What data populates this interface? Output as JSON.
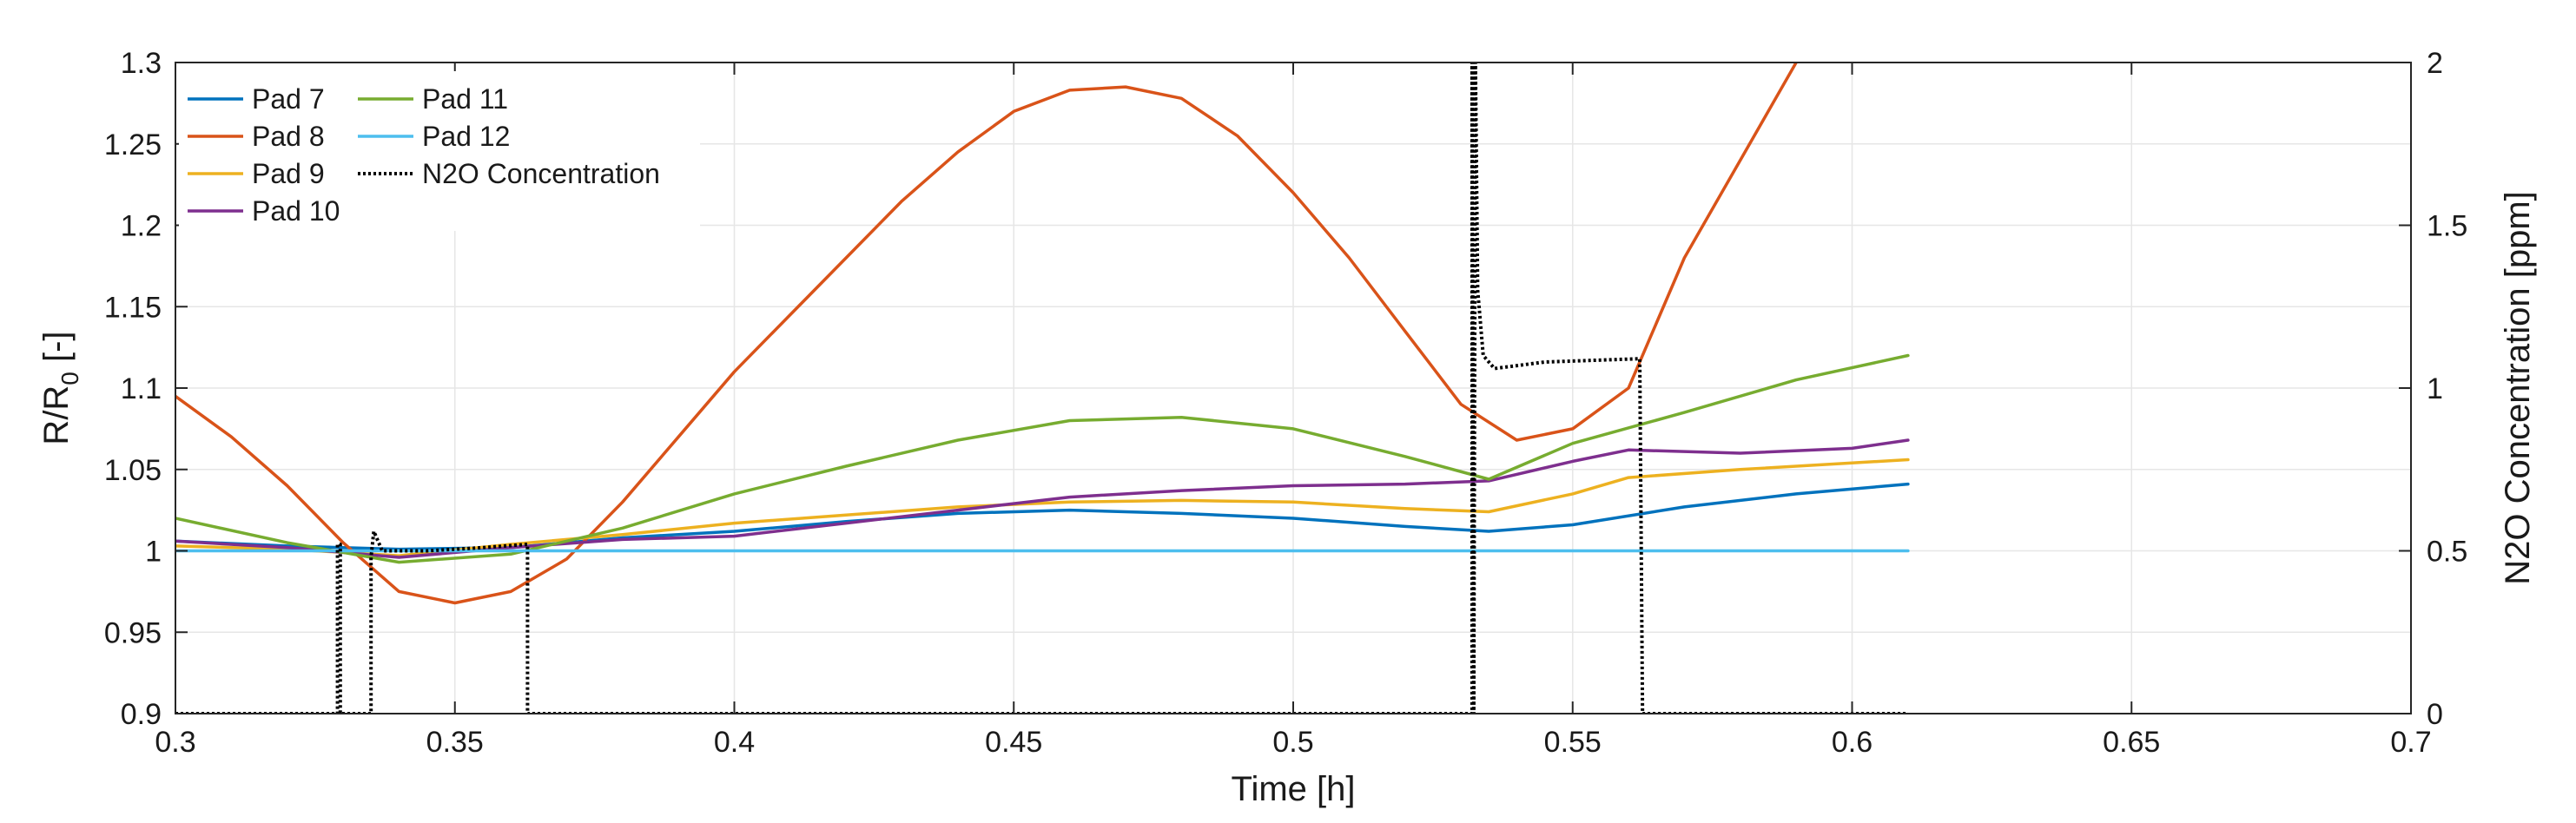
{
  "chart_data": {
    "type": "line",
    "xlabel": "Time [h]",
    "ylabel_main": "R/R",
    "ylabel_sub": "0",
    "ylabel_suffix": " [-]",
    "ylabel_right": "N2O Concentration [ppm]",
    "xlim": [
      0.3,
      0.7
    ],
    "ylim": [
      0.9,
      1.3
    ],
    "ylim_right": [
      0,
      2
    ],
    "xticks": [
      0.3,
      0.35,
      0.4,
      0.45,
      0.5,
      0.55,
      0.6,
      0.65,
      0.7
    ],
    "xtick_labels": [
      "0.3",
      "0.35",
      "0.4",
      "0.45",
      "0.5",
      "0.55",
      "0.6",
      "0.65",
      "0.7"
    ],
    "yticks": [
      0.9,
      0.95,
      1.0,
      1.05,
      1.1,
      1.15,
      1.2,
      1.25,
      1.3
    ],
    "ytick_labels": [
      "0.9",
      "0.95",
      "1",
      "1.05",
      "1.1",
      "1.15",
      "1.2",
      "1.25",
      "1.3"
    ],
    "yticks_right": [
      0,
      0.5,
      1,
      1.5,
      2
    ],
    "ytick_labels_right": [
      "0",
      "0.5",
      "1",
      "1.5",
      "2"
    ],
    "grid": true,
    "legend_position": "top-left",
    "series": [
      {
        "name": "Pad 7",
        "color": "#0072BD",
        "axis": "left",
        "style": "solid",
        "points": [
          [
            0.3,
            1.006
          ],
          [
            0.32,
            1.003
          ],
          [
            0.34,
            1.001
          ],
          [
            0.36,
            1.002
          ],
          [
            0.38,
            1.008
          ],
          [
            0.4,
            1.012
          ],
          [
            0.42,
            1.018
          ],
          [
            0.44,
            1.023
          ],
          [
            0.46,
            1.025
          ],
          [
            0.48,
            1.023
          ],
          [
            0.5,
            1.02
          ],
          [
            0.52,
            1.015
          ],
          [
            0.535,
            1.012
          ],
          [
            0.55,
            1.016
          ],
          [
            0.57,
            1.027
          ],
          [
            0.59,
            1.035
          ],
          [
            0.61,
            1.041
          ]
        ]
      },
      {
        "name": "Pad 8",
        "color": "#D95319",
        "axis": "left",
        "style": "solid",
        "points": [
          [
            0.3,
            1.095
          ],
          [
            0.31,
            1.07
          ],
          [
            0.32,
            1.04
          ],
          [
            0.33,
            1.005
          ],
          [
            0.34,
            0.975
          ],
          [
            0.35,
            0.968
          ],
          [
            0.36,
            0.975
          ],
          [
            0.37,
            0.995
          ],
          [
            0.38,
            1.03
          ],
          [
            0.39,
            1.07
          ],
          [
            0.4,
            1.11
          ],
          [
            0.41,
            1.145
          ],
          [
            0.42,
            1.18
          ],
          [
            0.43,
            1.215
          ],
          [
            0.44,
            1.245
          ],
          [
            0.45,
            1.27
          ],
          [
            0.46,
            1.283
          ],
          [
            0.47,
            1.285
          ],
          [
            0.48,
            1.278
          ],
          [
            0.49,
            1.255
          ],
          [
            0.5,
            1.22
          ],
          [
            0.51,
            1.18
          ],
          [
            0.52,
            1.135
          ],
          [
            0.53,
            1.09
          ],
          [
            0.54,
            1.068
          ],
          [
            0.55,
            1.075
          ],
          [
            0.56,
            1.1
          ],
          [
            0.57,
            1.18
          ],
          [
            0.58,
            1.24
          ],
          [
            0.59,
            1.3
          ]
        ]
      },
      {
        "name": "Pad 9",
        "color": "#EDB120",
        "axis": "left",
        "style": "solid",
        "points": [
          [
            0.3,
            1.003
          ],
          [
            0.32,
            1.001
          ],
          [
            0.34,
            0.997
          ],
          [
            0.36,
            1.004
          ],
          [
            0.38,
            1.01
          ],
          [
            0.4,
            1.017
          ],
          [
            0.42,
            1.022
          ],
          [
            0.44,
            1.027
          ],
          [
            0.46,
            1.03
          ],
          [
            0.48,
            1.031
          ],
          [
            0.5,
            1.03
          ],
          [
            0.52,
            1.026
          ],
          [
            0.535,
            1.024
          ],
          [
            0.55,
            1.035
          ],
          [
            0.56,
            1.045
          ],
          [
            0.58,
            1.05
          ],
          [
            0.61,
            1.056
          ]
        ]
      },
      {
        "name": "Pad 10",
        "color": "#7E2F8E",
        "axis": "left",
        "style": "solid",
        "points": [
          [
            0.3,
            1.006
          ],
          [
            0.32,
            1.002
          ],
          [
            0.34,
            0.996
          ],
          [
            0.36,
            1.002
          ],
          [
            0.38,
            1.007
          ],
          [
            0.4,
            1.009
          ],
          [
            0.42,
            1.017
          ],
          [
            0.44,
            1.025
          ],
          [
            0.46,
            1.033
          ],
          [
            0.48,
            1.037
          ],
          [
            0.5,
            1.04
          ],
          [
            0.52,
            1.041
          ],
          [
            0.535,
            1.043
          ],
          [
            0.55,
            1.055
          ],
          [
            0.56,
            1.062
          ],
          [
            0.58,
            1.06
          ],
          [
            0.6,
            1.063
          ],
          [
            0.61,
            1.068
          ]
        ]
      },
      {
        "name": "Pad 11",
        "color": "#77AC30",
        "axis": "left",
        "style": "solid",
        "points": [
          [
            0.3,
            1.02
          ],
          [
            0.32,
            1.005
          ],
          [
            0.34,
            0.993
          ],
          [
            0.36,
            0.998
          ],
          [
            0.38,
            1.014
          ],
          [
            0.4,
            1.035
          ],
          [
            0.42,
            1.052
          ],
          [
            0.44,
            1.068
          ],
          [
            0.46,
            1.08
          ],
          [
            0.48,
            1.082
          ],
          [
            0.5,
            1.075
          ],
          [
            0.52,
            1.058
          ],
          [
            0.535,
            1.044
          ],
          [
            0.55,
            1.066
          ],
          [
            0.57,
            1.085
          ],
          [
            0.59,
            1.105
          ],
          [
            0.61,
            1.12
          ]
        ]
      },
      {
        "name": "Pad 12",
        "color": "#4DBEEE",
        "axis": "left",
        "style": "solid",
        "points": [
          [
            0.3,
            1.0
          ],
          [
            0.35,
            1.0
          ],
          [
            0.4,
            1.0
          ],
          [
            0.45,
            1.0
          ],
          [
            0.5,
            1.0
          ],
          [
            0.55,
            1.0
          ],
          [
            0.61,
            1.0
          ]
        ]
      },
      {
        "name": "N2O Concentration",
        "color": "#000000",
        "axis": "right",
        "style": "dotted",
        "points": [
          [
            0.3,
            0
          ],
          [
            0.329,
            0
          ],
          [
            0.329,
            0.52
          ],
          [
            0.3295,
            0.52
          ],
          [
            0.3295,
            0
          ],
          [
            0.335,
            0
          ],
          [
            0.335,
            0.48
          ],
          [
            0.3355,
            0.56
          ],
          [
            0.337,
            0.5
          ],
          [
            0.345,
            0.5
          ],
          [
            0.355,
            0.51
          ],
          [
            0.363,
            0.52
          ],
          [
            0.363,
            0
          ],
          [
            0.532,
            0
          ],
          [
            0.532,
            2.0
          ],
          [
            0.5323,
            0
          ],
          [
            0.5326,
            2.0
          ],
          [
            0.533,
            1.3
          ],
          [
            0.534,
            1.1
          ],
          [
            0.536,
            1.06
          ],
          [
            0.545,
            1.08
          ],
          [
            0.562,
            1.09
          ],
          [
            0.5625,
            0
          ],
          [
            0.61,
            0
          ]
        ]
      }
    ]
  }
}
